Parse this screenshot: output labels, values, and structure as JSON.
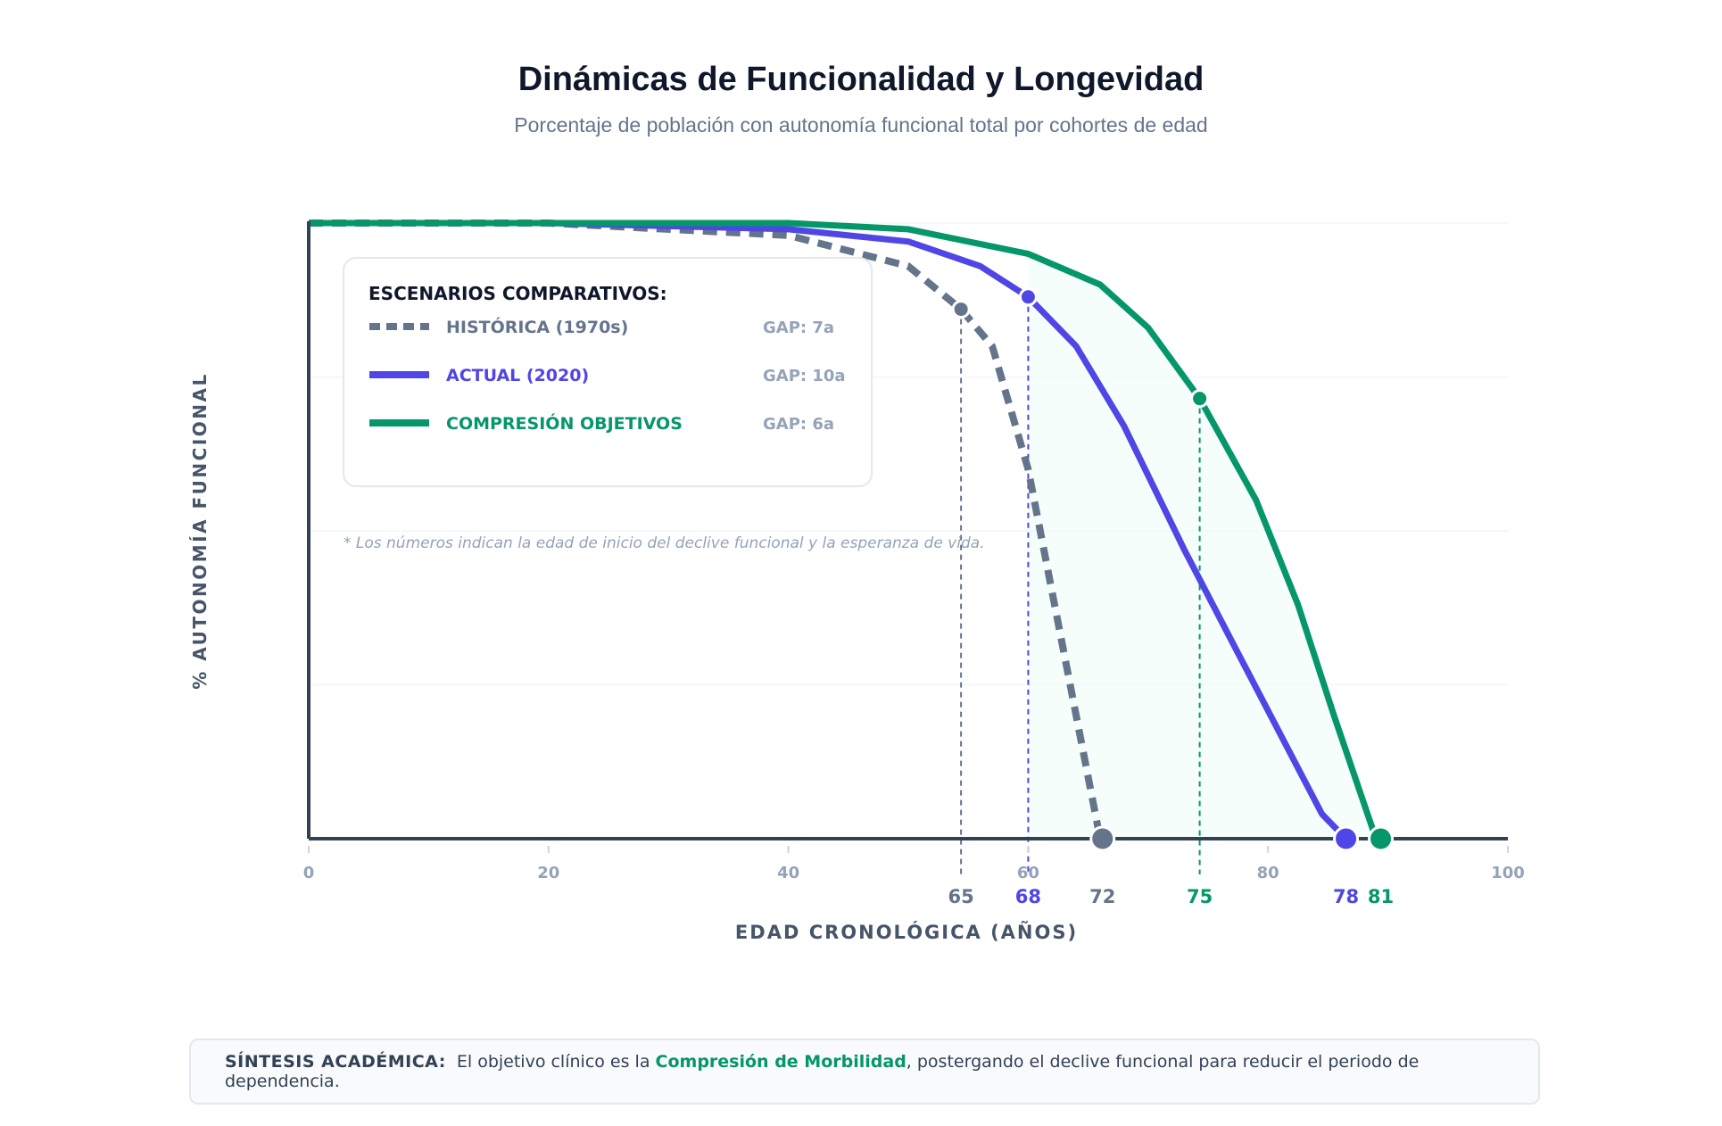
{
  "header": {
    "title": "Dinámicas de Funcionalidad y Longevidad",
    "subtitle": "Porcentaje de población con autonomía funcional total por cohortes de edad"
  },
  "chart_data": {
    "type": "line",
    "xlabel": "EDAD CRONOLÓGICA (AÑOS)",
    "ylabel": "% AUTONOMÍA FUNCIONAL",
    "xlim": [
      0,
      100
    ],
    "ylim": [
      0,
      100
    ],
    "x_ticks": [
      0,
      20,
      40,
      60,
      80,
      100
    ],
    "grid": "horizontal",
    "legend_position": "top-left",
    "legend_title": "ESCENARIOS COMPARATIVOS:",
    "note": "* Los números indican la edad de inicio del declive funcional y la esperanza de vida.",
    "series": [
      {
        "name": "HISTÓRICA (1970s)",
        "gap_label": "GAP: 7a",
        "color": "#64748b",
        "style": "dashed",
        "x": [
          0,
          20,
          40,
          50,
          54.4,
          57,
          60,
          63,
          66
        ],
        "y": [
          100,
          100,
          98,
          93,
          86,
          80,
          60,
          30,
          0
        ],
        "onset_x": 54.4,
        "onset_y": 86,
        "end_x": 66.2,
        "onset_label": "65",
        "end_label": "72"
      },
      {
        "name": "ACTUAL (2020)",
        "gap_label": "GAP: 10a",
        "color": "#4f46e5",
        "style": "solid",
        "x": [
          0,
          20,
          40,
          50,
          56,
          60,
          64,
          68,
          73,
          77,
          84.5,
          86.5
        ],
        "y": [
          100,
          100,
          99,
          97,
          93,
          88,
          80,
          67,
          47,
          32,
          4,
          0
        ],
        "onset_x": 60,
        "onset_y": 88,
        "end_x": 86.5,
        "onset_label": "68",
        "end_label": "78"
      },
      {
        "name": "COMPRESIÓN OBJETIVOS",
        "gap_label": "GAP: 6a",
        "color": "#059669",
        "style": "solid",
        "x": [
          0,
          20,
          40,
          50,
          60,
          66,
          70,
          74.3,
          79,
          82.5,
          85.5,
          89
        ],
        "y": [
          100,
          100,
          100,
          99,
          95,
          90,
          83,
          71.5,
          55,
          38,
          20,
          0
        ],
        "onset_x": 74.3,
        "onset_y": 71.5,
        "end_x": 89.4,
        "onset_label": "75",
        "end_label": "81"
      }
    ]
  },
  "synthesis": {
    "label": "SÍNTESIS ACADÉMICA:",
    "text_before": "El objetivo clínico es la",
    "highlight": "Compresión de Morbilidad",
    "text_after": ", postergando el declive funcional para reducir el periodo de dependencia."
  }
}
